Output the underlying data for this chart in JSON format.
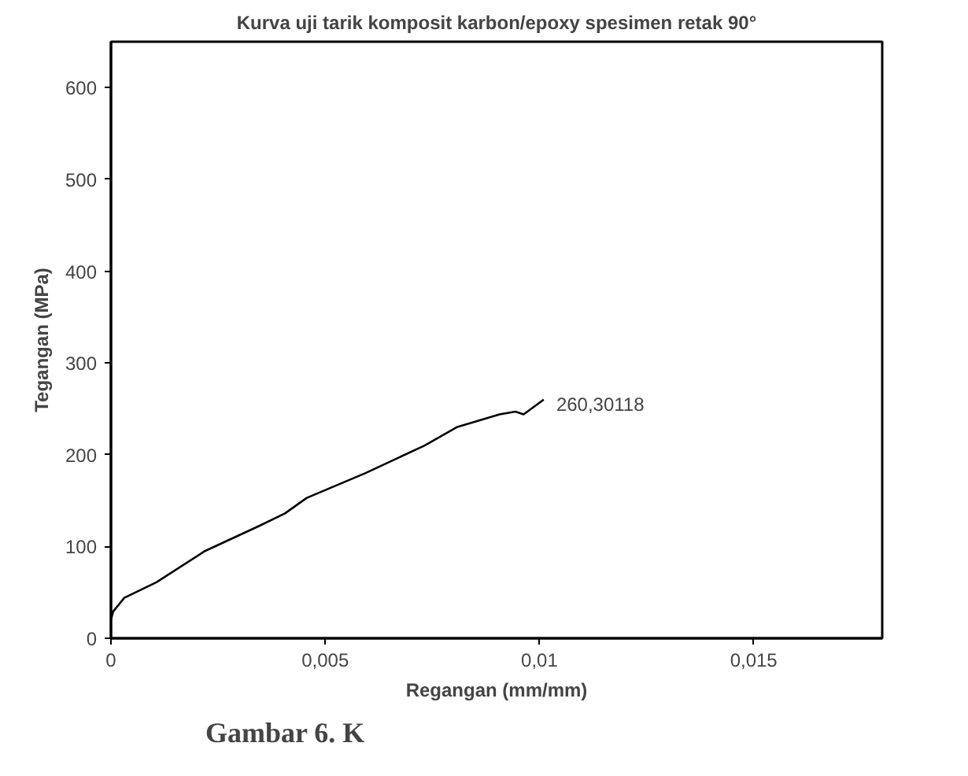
{
  "chart_data": {
    "type": "line",
    "title": "Kurva uji tarik komposit karbon/epoxy spesimen retak 90°",
    "xlabel": "Regangan (mm/mm)",
    "ylabel": "Tegangan (MPa)",
    "x": [
      0,
      5e-05,
      0.00031,
      0.00106,
      0.00219,
      0.00344,
      0.00406,
      0.00457,
      0.00594,
      0.00732,
      0.00807,
      0.00907,
      0.00944,
      0.00963,
      0.0101
    ],
    "series": [
      {
        "color": "#000000",
        "values": [
          20,
          29,
          44,
          61,
          95,
          122,
          136,
          153,
          180,
          210,
          230,
          244,
          247,
          244,
          260
        ]
      }
    ],
    "xlim": [
      0,
      0.018
    ],
    "ylim": [
      0,
      650
    ],
    "xticks": [
      0,
      {
        "value": 0.005,
        "label": "0,005"
      },
      {
        "value": 0.01,
        "label": "0,01"
      },
      {
        "value": 0.015,
        "label": "0,015"
      }
    ],
    "yticks": [
      0,
      100,
      200,
      300,
      400,
      500,
      600
    ],
    "annotations": [
      {
        "text": "260,30118",
        "x": 0.0101,
        "y": 260
      },
      "Gambar 6. K"
    ],
    "grid": false,
    "marker": "none",
    "line_style": "solid"
  }
}
